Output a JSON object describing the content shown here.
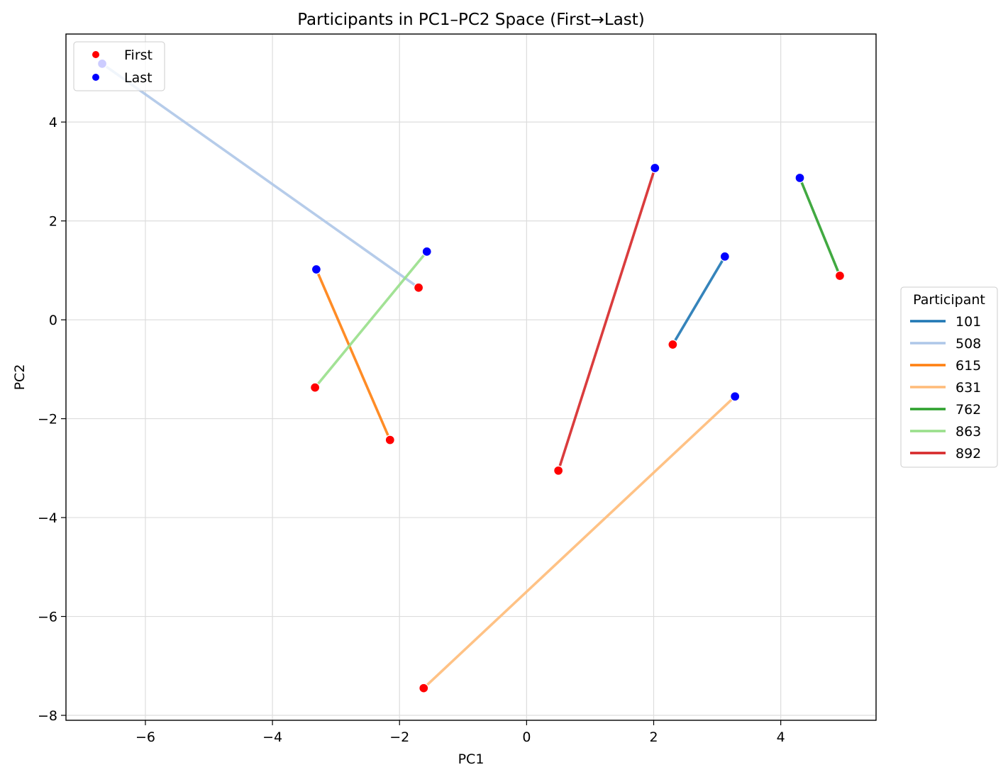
{
  "chart_data": {
    "type": "line",
    "title": "Participants in PC1–PC2 Space (First→Last)",
    "xlabel": "PC1",
    "ylabel": "PC2",
    "xlim": [
      -7.25,
      5.5
    ],
    "ylim": [
      -8.1,
      5.78
    ],
    "xticks": [
      -6,
      -4,
      -2,
      0,
      2,
      4
    ],
    "yticks": [
      -8,
      -6,
      -4,
      -2,
      0,
      2,
      4
    ],
    "grid": true,
    "marker_legend": {
      "placement": "top-left",
      "items": [
        {
          "label": "First",
          "color": "#ff0000"
        },
        {
          "label": "Last",
          "color": "#0000ff"
        }
      ]
    },
    "series_legend": {
      "title": "Participant",
      "placement": "right-outside"
    },
    "series": [
      {
        "name": "101",
        "color": "#1f77b4",
        "first": [
          2.3,
          -0.5
        ],
        "last": [
          3.12,
          1.28
        ]
      },
      {
        "name": "508",
        "color": "#aec7e8",
        "first": [
          -1.7,
          0.65
        ],
        "last": [
          -6.68,
          5.18
        ]
      },
      {
        "name": "615",
        "color": "#ff7f0e",
        "first": [
          -2.15,
          -2.43
        ],
        "last": [
          -3.31,
          1.02
        ]
      },
      {
        "name": "631",
        "color": "#ffbb78",
        "first": [
          -1.62,
          -7.45
        ],
        "last": [
          3.28,
          -1.55
        ]
      },
      {
        "name": "762",
        "color": "#2ca02c",
        "first": [
          4.93,
          0.89
        ],
        "last": [
          4.3,
          2.87
        ]
      },
      {
        "name": "863",
        "color": "#98df8a",
        "first": [
          -3.33,
          -1.37
        ],
        "last": [
          -1.57,
          1.38
        ]
      },
      {
        "name": "892",
        "color": "#d62728",
        "first": [
          0.5,
          -3.05
        ],
        "last": [
          2.02,
          3.07
        ]
      }
    ]
  }
}
